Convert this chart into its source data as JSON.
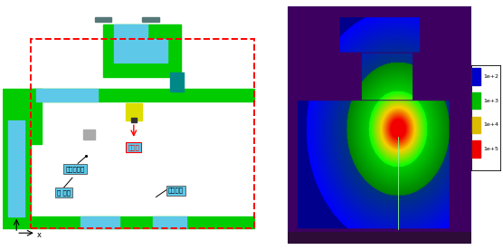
{
  "fig_width": 5.56,
  "fig_height": 2.76,
  "dpi": 100,
  "cyan": "#5DC8E8",
  "green": "#00CC00",
  "dark_green": "#006600",
  "yellow": "#CCCC00",
  "purple_bg": "#3D0060",
  "blue_room": "#0000AA",
  "legend_items": [
    {
      "label": "1e+2",
      "color": "#0000CC"
    },
    {
      "label": "1e+3",
      "color": "#00BB00"
    },
    {
      "label": "1e+4",
      "color": "#DDBB00"
    },
    {
      "label": "1e+5",
      "color": "#EE0000"
    }
  ]
}
